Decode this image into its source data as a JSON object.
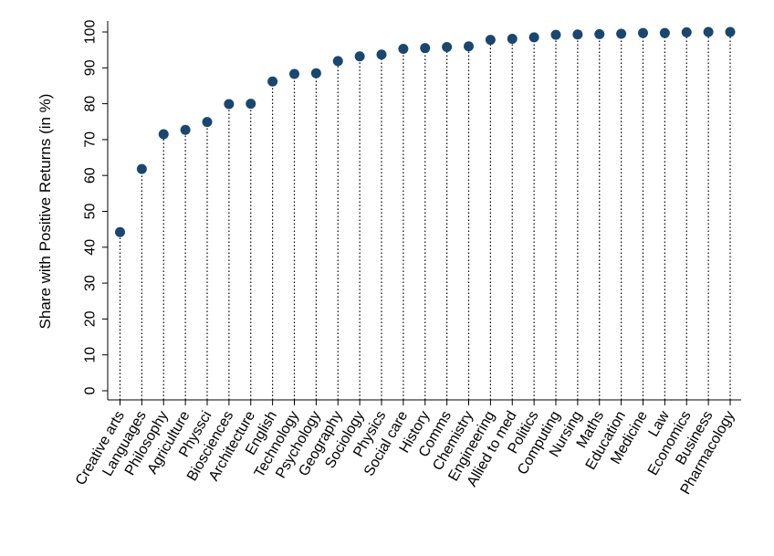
{
  "chart_data": {
    "type": "scatter",
    "style": "dot-with-dotted-drop-lines",
    "title": "",
    "xlabel": "",
    "ylabel": "Share with Positive Returns (in %)",
    "ylim": [
      0,
      100
    ],
    "yticks": [
      0,
      10,
      20,
      30,
      40,
      50,
      60,
      70,
      80,
      90,
      100
    ],
    "grid": false,
    "legend": "none",
    "marker_color": "#1a476f",
    "categories": [
      "Creative arts",
      "Languages",
      "Philosophy",
      "Agriculture",
      "Physsci",
      "Biosciences",
      "Architecture",
      "English",
      "Technology",
      "Psychology",
      "Geography",
      "Sociology",
      "Physics",
      "Social care",
      "History",
      "Comms",
      "Chemistry",
      "Engineering",
      "Allied to med",
      "Politics",
      "Computing",
      "Nursing",
      "Maths",
      "Education",
      "Medicine",
      "Law",
      "Economics",
      "Business",
      "Pharmacology"
    ],
    "values": [
      44.2,
      61.8,
      71.5,
      72.7,
      74.9,
      79.9,
      80.0,
      86.2,
      88.3,
      88.5,
      91.9,
      93.2,
      93.7,
      95.3,
      95.5,
      95.8,
      96.0,
      97.8,
      98.1,
      98.5,
      99.2,
      99.3,
      99.4,
      99.5,
      99.7,
      99.7,
      99.9,
      100.0,
      100.0
    ]
  }
}
